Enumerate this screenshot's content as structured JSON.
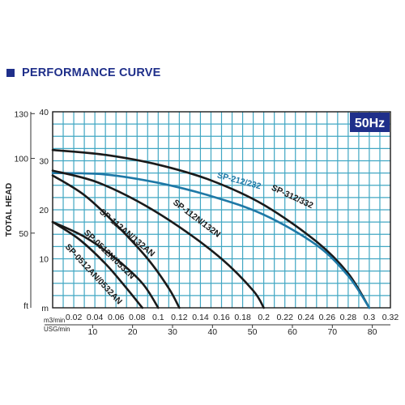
{
  "header": {
    "title": "PERFORMANCE CURVE"
  },
  "colors": {
    "header_square": "#1f2f8a",
    "header_text": "#1f2f8a",
    "grid": "#41a7c3",
    "plot_border": "#1a1a1a",
    "badge_bg": "#1f2f8a",
    "badge_text": "#ffffff",
    "curve_dark": "#1a1a1a",
    "curve_blue": "#1e78a6"
  },
  "chart_data": {
    "type": "line",
    "badge": "50Hz",
    "ylabel": "TOTAL HEAD",
    "y_unit_ft": "ft",
    "y_unit_m": "m",
    "x_unit_m3": "m3/min",
    "x_unit_usg": "USG/min",
    "xlim": [
      0,
      0.32
    ],
    "ylim": [
      0,
      40
    ],
    "x_ticks": [
      "0.02",
      "0.04",
      "0.06",
      "0.08",
      "0.1",
      "0.12",
      "0.14",
      "0.16",
      "0.18",
      "0.2",
      "0.22",
      "0.24",
      "0.26",
      "0.28",
      "0.3",
      "0.32"
    ],
    "y_ticks_m": [
      {
        "value": 10,
        "label": "10"
      },
      {
        "value": 20,
        "label": "20"
      },
      {
        "value": 30,
        "label": "30"
      },
      {
        "value": 40,
        "label": "40"
      }
    ],
    "y_ticks_ft": [
      {
        "value": 15.24,
        "label": "50"
      },
      {
        "value": 30.48,
        "label": "100"
      },
      {
        "value": 39.62,
        "label": "130"
      }
    ],
    "x_ticks_usg": [
      {
        "value": 10,
        "label": "10"
      },
      {
        "value": 20,
        "label": "20"
      },
      {
        "value": 30,
        "label": "30"
      },
      {
        "value": 40,
        "label": "40"
      },
      {
        "value": 50,
        "label": "50"
      },
      {
        "value": 60,
        "label": "60"
      },
      {
        "value": 70,
        "label": "70"
      },
      {
        "value": 80,
        "label": "80"
      }
    ],
    "usg_per_m3min": 264.17,
    "grid": true,
    "series": [
      {
        "name": "SP-312/332",
        "color": "dark",
        "x": [
          0,
          0.05,
          0.1,
          0.15,
          0.2,
          0.25,
          0.28,
          0.3
        ],
        "y": [
          32.2,
          31.2,
          29.2,
          26.0,
          21.0,
          13.5,
          7.0,
          0
        ]
      },
      {
        "name": "SP-212/232",
        "color": "blue",
        "x": [
          0,
          0.05,
          0.1,
          0.15,
          0.2,
          0.25,
          0.28,
          0.3
        ],
        "y": [
          27.5,
          27.2,
          25.5,
          22.8,
          19.0,
          12.8,
          6.5,
          0
        ]
      },
      {
        "name": "SP-112N/132N",
        "color": "dark",
        "x": [
          0,
          0.04,
          0.08,
          0.12,
          0.16,
          0.19,
          0.2
        ],
        "y": [
          28.0,
          25.8,
          21.8,
          16.5,
          10.0,
          3.5,
          0
        ]
      },
      {
        "name": "SP-112AN/132AN",
        "color": "dark",
        "x": [
          0,
          0.03,
          0.06,
          0.09,
          0.11,
          0.12
        ],
        "y": [
          27.0,
          23.0,
          17.0,
          10.0,
          4.0,
          0
        ]
      },
      {
        "name": "SP-0512N/0532N",
        "color": "dark",
        "x": [
          0,
          0.03,
          0.06,
          0.085,
          0.1
        ],
        "y": [
          17.5,
          14.5,
          10.0,
          5.0,
          0
        ]
      },
      {
        "name": "SP-0512AN/0532AN",
        "color": "dark",
        "x": [
          0,
          0.025,
          0.05,
          0.07,
          0.085
        ],
        "y": [
          17.5,
          14.0,
          9.0,
          4.0,
          0
        ]
      }
    ],
    "annotations": [
      {
        "series": "SP-312/332",
        "text": "SP-312/332",
        "at": [
          0.226,
          22.2
        ],
        "angle": 25
      },
      {
        "series": "SP-212/232",
        "text": "SP-212/232",
        "at": [
          0.176,
          25.4
        ],
        "angle": 15
      },
      {
        "series": "SP-112N/132N",
        "text": "SP-112N/132N",
        "at": [
          0.135,
          17.8
        ],
        "angle": 37
      },
      {
        "series": "SP-112AN/132AN",
        "text": "SP-112AN/132AN",
        "at": [
          0.069,
          14.9
        ],
        "angle": 40
      },
      {
        "series": "SP-0512N/0532N",
        "text": "SP-0512N/0532N",
        "at": [
          0.052,
          10.5
        ],
        "angle": 44
      },
      {
        "series": "SP-0512AN/0532AN",
        "text": "SP-0512AN/0532AN",
        "at": [
          0.037,
          6.5
        ],
        "angle": 47
      }
    ]
  }
}
